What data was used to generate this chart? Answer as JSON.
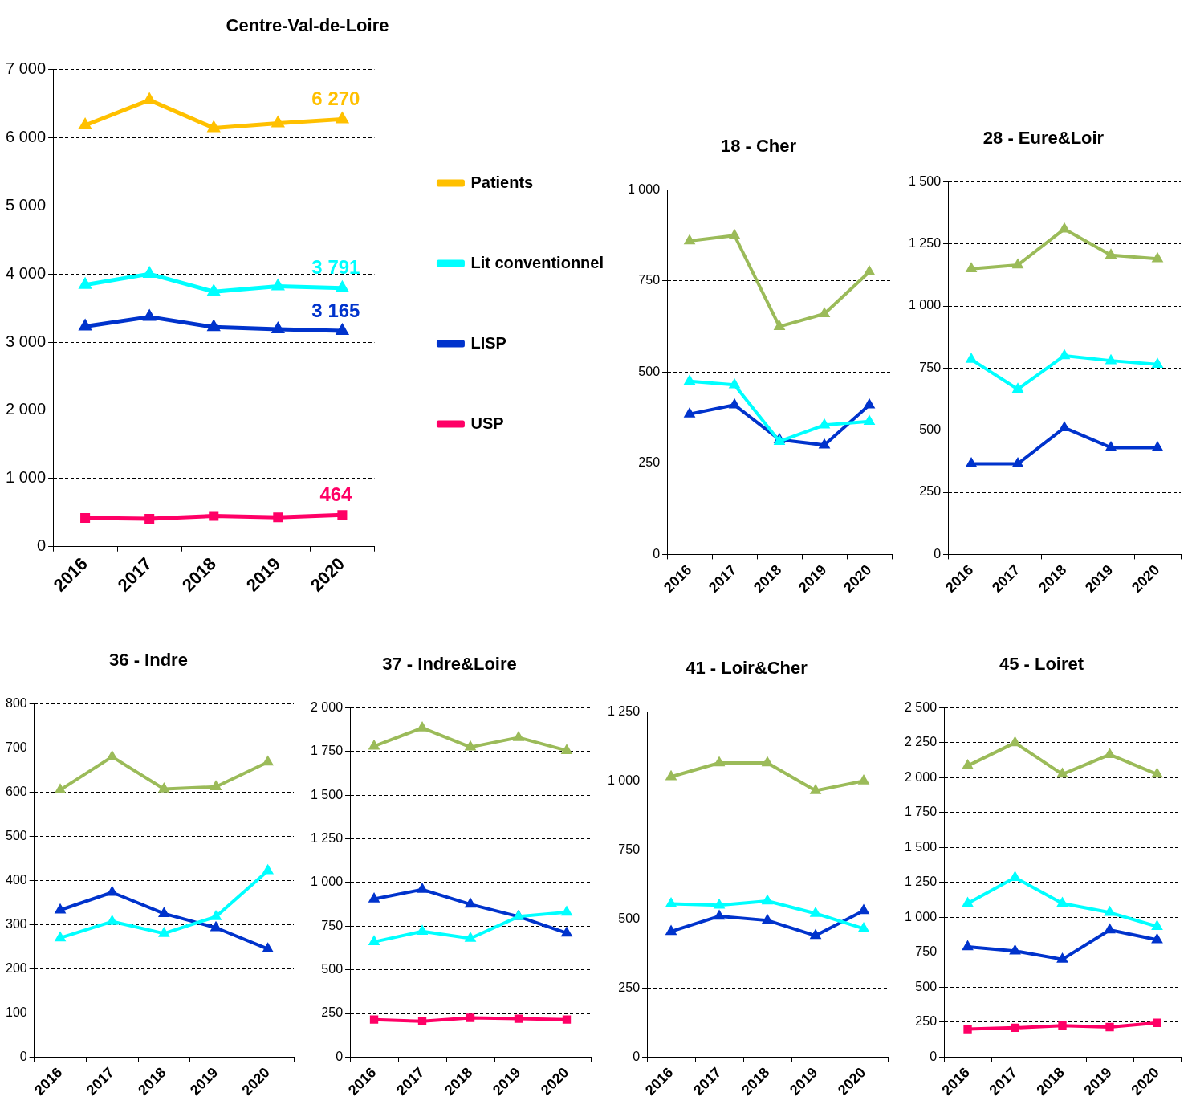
{
  "chart_data": [
    {
      "type": "line",
      "title": "Centre-Val-de-Loire",
      "categories": [
        "2016",
        "2017",
        "2018",
        "2019",
        "2020"
      ],
      "ylim": [
        0,
        7000
      ],
      "yticks": [
        0,
        {
          "value": 1000,
          "label": "1 000"
        },
        {
          "value": 2000,
          "label": "2 000"
        },
        {
          "value": 3000,
          "label": "3 000"
        },
        {
          "value": 4000,
          "label": "4 000"
        },
        {
          "value": 5000,
          "label": "5 000"
        },
        {
          "value": 6000,
          "label": "6 000"
        },
        {
          "value": 7000,
          "label": "7 000"
        }
      ],
      "grid": "y",
      "legend": "right",
      "marker": "triangle",
      "series": [
        {
          "name": "Patients",
          "color": "#ffc000",
          "values": [
            6180,
            6550,
            6140,
            6210,
            6270
          ],
          "value_labels": [
            null,
            null,
            null,
            null,
            "6 270"
          ]
        },
        {
          "name": "Lit conventionnel",
          "color": "#00ffff",
          "values": [
            3840,
            4000,
            3740,
            3820,
            3791
          ],
          "value_labels": [
            null,
            null,
            null,
            null,
            "3 791"
          ]
        },
        {
          "name": "LISP",
          "color": "#0033cc",
          "values": [
            3230,
            3370,
            3220,
            3190,
            3165
          ],
          "value_labels": [
            null,
            null,
            null,
            null,
            "3 165"
          ]
        },
        {
          "name": "USP",
          "color": "#ff0066",
          "marker": "square",
          "values": [
            420,
            410,
            450,
            430,
            464
          ],
          "value_labels": [
            null,
            null,
            null,
            null,
            "464"
          ]
        }
      ]
    },
    {
      "type": "line",
      "title": "18 - Cher",
      "categories": [
        "2016",
        "2017",
        "2018",
        "2019",
        "2020"
      ],
      "ylim": [
        0,
        1000
      ],
      "yticks": [
        0,
        250,
        500,
        750,
        {
          "value": 1000,
          "label": "1 000"
        }
      ],
      "grid": "y",
      "marker": "triangle",
      "series": [
        {
          "color": "#9bbb59",
          "values": [
            860,
            875,
            625,
            660,
            775
          ]
        },
        {
          "color": "#00ffff",
          "values": [
            475,
            465,
            310,
            355,
            365
          ]
        },
        {
          "color": "#0033cc",
          "values": [
            385,
            410,
            315,
            300,
            410
          ]
        }
      ]
    },
    {
      "type": "line",
      "title": "28 - Eure&Loir",
      "categories": [
        "2016",
        "2017",
        "2018",
        "2019",
        "2020"
      ],
      "ylim": [
        0,
        1500
      ],
      "yticks": [
        0,
        250,
        500,
        750,
        {
          "value": 1000,
          "label": "1 000"
        },
        {
          "value": 1250,
          "label": "1 250"
        },
        {
          "value": 1500,
          "label": "1 500"
        }
      ],
      "grid": "y",
      "marker": "triangle",
      "series": [
        {
          "color": "#9bbb59",
          "values": [
            1150,
            1165,
            1310,
            1205,
            1190
          ]
        },
        {
          "color": "#00ffff",
          "values": [
            785,
            665,
            800,
            780,
            765
          ]
        },
        {
          "color": "#0033cc",
          "values": [
            365,
            365,
            510,
            430,
            430
          ]
        }
      ]
    },
    {
      "type": "line",
      "title": "36 - Indre",
      "categories": [
        "2016",
        "2017",
        "2018",
        "2019",
        "2020"
      ],
      "ylim": [
        0,
        800
      ],
      "yticks": [
        0,
        100,
        200,
        300,
        400,
        500,
        600,
        700,
        800
      ],
      "grid": "y",
      "marker": "triangle",
      "series": [
        {
          "color": "#9bbb59",
          "values": [
            605,
            680,
            607,
            612,
            668
          ]
        },
        {
          "color": "#00ffff",
          "values": [
            270,
            307,
            280,
            318,
            422
          ]
        },
        {
          "color": "#0033cc",
          "values": [
            333,
            373,
            325,
            293,
            245
          ]
        }
      ]
    },
    {
      "type": "line",
      "title": "37 - Indre&Loire",
      "categories": [
        "2016",
        "2017",
        "2018",
        "2019",
        "2020"
      ],
      "ylim": [
        0,
        2000
      ],
      "yticks": [
        0,
        250,
        500,
        750,
        {
          "value": 1000,
          "label": "1 000"
        },
        {
          "value": 1250,
          "label": "1 250"
        },
        {
          "value": 1500,
          "label": "1 500"
        },
        {
          "value": 1750,
          "label": "1 750"
        },
        {
          "value": 2000,
          "label": "2 000"
        }
      ],
      "grid": "y",
      "marker": "triangle",
      "series": [
        {
          "color": "#9bbb59",
          "values": [
            1780,
            1885,
            1775,
            1830,
            1755
          ]
        },
        {
          "color": "#00ffff",
          "values": [
            660,
            720,
            680,
            805,
            830
          ]
        },
        {
          "color": "#0033cc",
          "values": [
            905,
            960,
            875,
            805,
            710
          ]
        },
        {
          "color": "#ff0066",
          "marker": "square",
          "values": [
            215,
            205,
            225,
            220,
            215
          ]
        }
      ]
    },
    {
      "type": "line",
      "title": "41 - Loir&Cher",
      "categories": [
        "2016",
        "2017",
        "2018",
        "2019",
        "2020"
      ],
      "ylim": [
        0,
        1250
      ],
      "yticks": [
        0,
        250,
        500,
        750,
        {
          "value": 1000,
          "label": "1 000"
        },
        {
          "value": 1250,
          "label": "1 250"
        }
      ],
      "grid": "y",
      "marker": "triangle",
      "series": [
        {
          "color": "#9bbb59",
          "values": [
            1015,
            1065,
            1065,
            965,
            1000
          ]
        },
        {
          "color": "#00ffff",
          "values": [
            555,
            550,
            565,
            520,
            465
          ]
        },
        {
          "color": "#0033cc",
          "values": [
            455,
            510,
            495,
            440,
            530
          ]
        }
      ]
    },
    {
      "type": "line",
      "title": "45 - Loiret",
      "categories": [
        "2016",
        "2017",
        "2018",
        "2019",
        "2020"
      ],
      "ylim": [
        0,
        2500
      ],
      "yticks": [
        0,
        250,
        500,
        750,
        {
          "value": 1000,
          "label": "1 000"
        },
        {
          "value": 1250,
          "label": "1 250"
        },
        {
          "value": 1500,
          "label": "1 500"
        },
        {
          "value": 1750,
          "label": "1 750"
        },
        {
          "value": 2000,
          "label": "2 000"
        },
        {
          "value": 2250,
          "label": "2 250"
        },
        {
          "value": 2500,
          "label": "2 500"
        }
      ],
      "grid": "y",
      "marker": "triangle",
      "series": [
        {
          "color": "#9bbb59",
          "values": [
            2085,
            2250,
            2025,
            2165,
            2025
          ]
        },
        {
          "color": "#00ffff",
          "values": [
            1100,
            1285,
            1100,
            1035,
            935
          ]
        },
        {
          "color": "#0033cc",
          "values": [
            790,
            760,
            700,
            910,
            840
          ]
        },
        {
          "color": "#ff0066",
          "marker": "square",
          "values": [
            200,
            210,
            225,
            215,
            245
          ]
        }
      ]
    }
  ]
}
